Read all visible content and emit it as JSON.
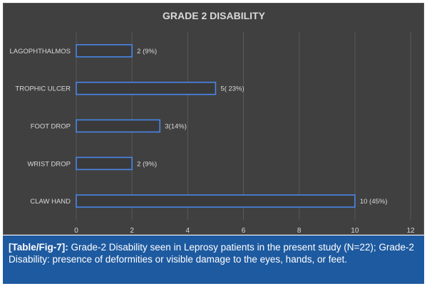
{
  "chart_data": {
    "type": "bar",
    "orientation": "horizontal",
    "title": "GRADE 2 DISABILITY",
    "categories": [
      "LAGOPHTHALMOS",
      "TROPHIC ULCER",
      "FOOT DROP",
      "WRIST DROP",
      "CLAW HAND"
    ],
    "values": [
      2,
      5,
      3,
      2,
      10
    ],
    "data_labels": [
      "2 (9%)",
      "5( 23%)",
      "3(14%)",
      "2 (9%)",
      "10 (45%)"
    ],
    "xlim": [
      0,
      12
    ],
    "xticks": [
      0,
      2,
      4,
      6,
      8,
      10,
      12
    ],
    "grid": true,
    "legend": "none",
    "colors": {
      "background": "#404040",
      "bar_outline": "#4a86e8",
      "text": "#d9d9d9"
    }
  },
  "caption": {
    "ref": "[Table/Fig-7]:",
    "text": " Grade-2 Disability seen in Leprosy patients in the present study (N=22); Grade-2 Disability: presence of deformities or visible damage to the eyes, hands, or feet.",
    "background": "#1e5aa0"
  }
}
